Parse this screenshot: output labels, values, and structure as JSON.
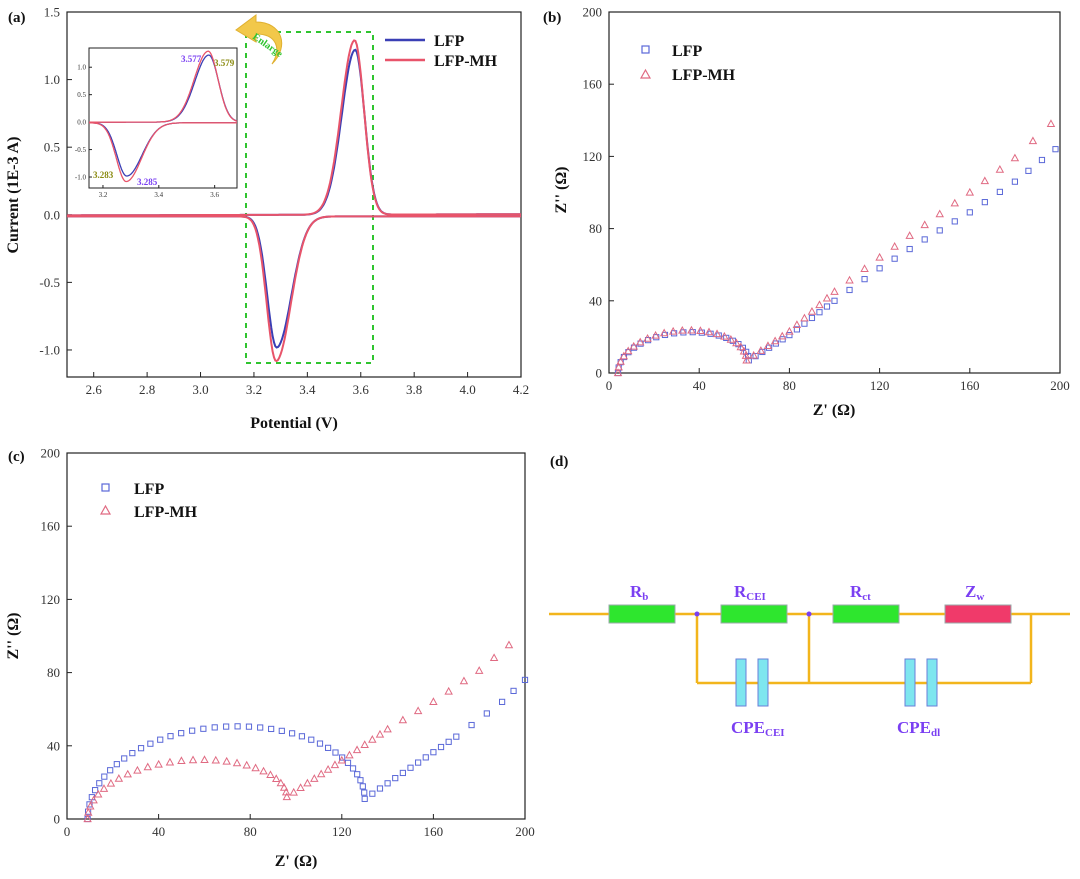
{
  "chart_data": [
    {
      "panel": "(a)",
      "type": "line",
      "xlabel": "Potential (V)",
      "ylabel": "Current (1E-3 A)",
      "xlim": [
        2.5,
        4.2
      ],
      "ylim": [
        -1.2,
        1.5
      ],
      "xticks": [
        "2.6",
        "2.8",
        "3.0",
        "3.2",
        "3.4",
        "3.6",
        "3.8",
        "4.0",
        "4.2"
      ],
      "yticks": [
        "-1.0",
        "-0.5",
        "0.0",
        "0.5",
        "1.0",
        "1.5"
      ],
      "legend_position": "top-right",
      "annotation": "Enlarge",
      "series": [
        {
          "name": "LFP",
          "color": "#3a3fb5",
          "anodic_peak": {
            "x": 3.579,
            "y": 1.22
          },
          "cathodic_peak": {
            "x": 3.285,
            "y": -0.97
          }
        },
        {
          "name": "LFP-MH",
          "color": "#e8546a",
          "anodic_peak": {
            "x": 3.577,
            "y": 1.29
          },
          "cathodic_peak": {
            "x": 3.283,
            "y": -1.07
          }
        }
      ],
      "inset": {
        "xlim": [
          3.15,
          3.68
        ],
        "ylim": [
          -1.2,
          1.35
        ],
        "xticks": [
          "3.2",
          "3.4",
          "3.6"
        ],
        "yticks": [
          "-1.0",
          "-0.5",
          "0.0",
          "0.5",
          "1.0"
        ],
        "labels": [
          {
            "text": "3.577",
            "color": "#7a3ff2"
          },
          {
            "text": "3.579",
            "color": "#8a8a10"
          },
          {
            "text": "3.283",
            "color": "#8a8a10"
          },
          {
            "text": "3.285",
            "color": "#7a3ff2"
          }
        ]
      }
    },
    {
      "panel": "(b)",
      "type": "scatter",
      "xlabel": "Z' (Ω)",
      "ylabel": "Z'' (Ω)",
      "xlim": [
        0,
        200
      ],
      "ylim": [
        0,
        200
      ],
      "xticks": [
        "0",
        "40",
        "80",
        "120",
        "160",
        "200"
      ],
      "yticks": [
        "0",
        "40",
        "80",
        "120",
        "160",
        "200"
      ],
      "legend_position": "top-left",
      "series": [
        {
          "name": "LFP",
          "marker": "square",
          "color": "#5a68d8",
          "semicircle": {
            "x_start": 4,
            "x_end": 62,
            "peak": 19
          },
          "tail": [
            [
              62,
              7
            ],
            [
              80,
              21
            ],
            [
              100,
              40
            ],
            [
              120,
              58
            ],
            [
              140,
              74
            ],
            [
              160,
              89
            ],
            [
              180,
              106
            ],
            [
              198,
              124
            ]
          ]
        },
        {
          "name": "LFP-MH",
          "marker": "triangle",
          "color": "#e06a82",
          "semicircle": {
            "x_start": 4,
            "x_end": 61,
            "peak": 20
          },
          "tail": [
            [
              61,
              7
            ],
            [
              80,
              23
            ],
            [
              100,
              45
            ],
            [
              120,
              64
            ],
            [
              140,
              82
            ],
            [
              160,
              100
            ],
            [
              180,
              119
            ],
            [
              196,
              138
            ]
          ]
        }
      ]
    },
    {
      "panel": "(c)",
      "type": "scatter",
      "xlabel": "Z' (Ω)",
      "ylabel": "Z'' (Ω)",
      "xlim": [
        0,
        200
      ],
      "ylim": [
        0,
        200
      ],
      "xticks": [
        "0",
        "40",
        "80",
        "120",
        "160",
        "200"
      ],
      "yticks": [
        "0",
        "40",
        "80",
        "120",
        "160",
        "200"
      ],
      "legend_position": "top-left",
      "series": [
        {
          "name": "LFP",
          "marker": "square",
          "color": "#5a68d8",
          "semicircle": {
            "x_start": 9,
            "x_end": 130,
            "peak": 45
          },
          "tail": [
            [
              130,
              11
            ],
            [
              150,
              28
            ],
            [
              170,
              45
            ],
            [
              190,
              64
            ],
            [
              200,
              76
            ]
          ]
        },
        {
          "name": "LFP-MH",
          "marker": "triangle",
          "color": "#e06a82",
          "semicircle": {
            "x_start": 9,
            "x_end": 96,
            "peak": 26
          },
          "tail": [
            [
              96,
              12
            ],
            [
              120,
              32
            ],
            [
              140,
              49
            ],
            [
              160,
              64
            ],
            [
              180,
              81
            ],
            [
              193,
              95
            ]
          ]
        }
      ]
    }
  ],
  "circuit": {
    "panel": "(d)",
    "elements": [
      {
        "main": "R",
        "sub": "b"
      },
      {
        "main": "R",
        "sub": "CEI"
      },
      {
        "main": "R",
        "sub": "ct"
      },
      {
        "main": "Z",
        "sub": "w"
      }
    ],
    "capacitors": [
      {
        "main": "CPE",
        "sub": "CEI"
      },
      {
        "main": "CPE",
        "sub": "dl"
      }
    ],
    "colors": {
      "wire": "#f2b51c",
      "resistor": "#2ee62e",
      "warburg": "#f03a6a",
      "capacitor": "#7ee6ef",
      "text": "#7a3ff2"
    }
  },
  "colors": {
    "lfp": "#3a3fb5",
    "lfp_mh": "#e8546a",
    "box": "#2fc42f",
    "arrow": "#f2c84a"
  }
}
